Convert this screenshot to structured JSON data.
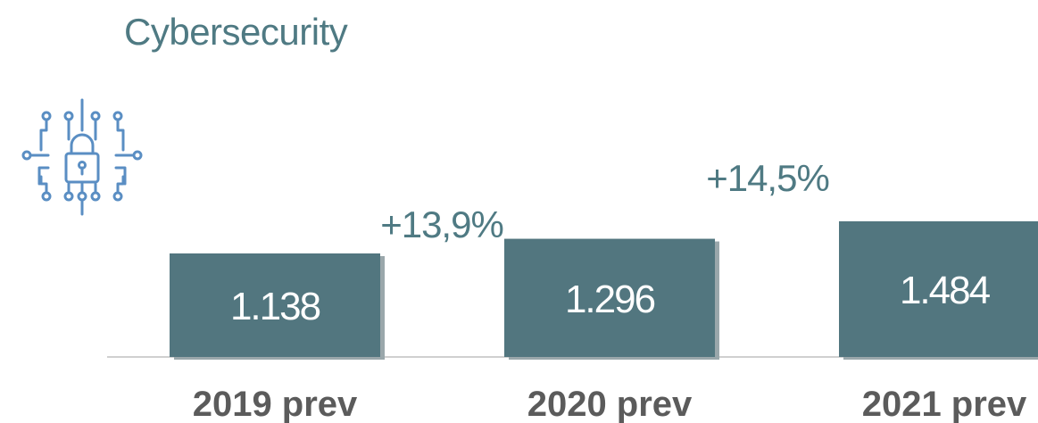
{
  "page": {
    "title": "Cybersecurity",
    "icon": "circuit-lock-icon"
  },
  "colors": {
    "bar": "#52767f",
    "title": "#4f7a83",
    "category_label": "#5b5b5b",
    "value_label": "#ffffff"
  },
  "chart_data": {
    "type": "bar",
    "title": "Cybersecurity",
    "categories": [
      "2019 prev",
      "2020 prev",
      "2021 prev"
    ],
    "values": [
      1138,
      1296,
      1484
    ],
    "value_labels": [
      "1.138",
      "1.296",
      "1.484"
    ],
    "growth_labels": [
      "+13,9%",
      "+14,5%"
    ],
    "xlabel": "",
    "ylabel": "",
    "grid": false,
    "legend": "none"
  }
}
